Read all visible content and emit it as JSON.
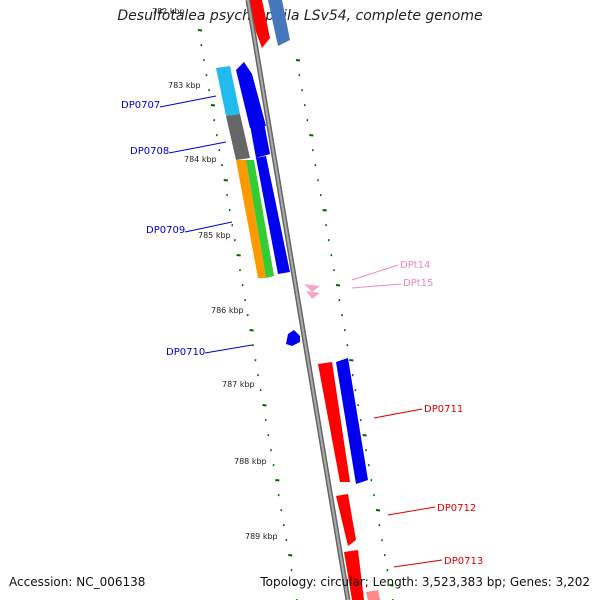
{
  "title": "Desulfotalea psychrophila LSv54, complete genome",
  "footer": {
    "accession": "Accession: NC_006138",
    "summary": "Topology: circular; Length: 3,523,383 bp; Genes: 3,202"
  },
  "ruler": {
    "top_faded_label": "782 kbp",
    "labels": [
      "783 kbp",
      "784 kbp",
      "785 kbp",
      "786 kbp",
      "787 kbp",
      "788 kbp",
      "789 kbp"
    ]
  },
  "genes": [
    {
      "name": "DP0707",
      "color": "#0000cc"
    },
    {
      "name": "DP0708",
      "color": "#0000cc"
    },
    {
      "name": "DP0709",
      "color": "#0000cc"
    },
    {
      "name": "DP0710",
      "color": "#0000cc"
    },
    {
      "name": "DPt14",
      "color": "#ee88bb"
    },
    {
      "name": "DPt15",
      "color": "#ee88bb"
    },
    {
      "name": "DP0711",
      "color": "#dd0000"
    },
    {
      "name": "DP0712",
      "color": "#dd0000"
    },
    {
      "name": "DP0713",
      "color": "#dd0000"
    }
  ],
  "colors": {
    "backbone": "#888888",
    "forward_gene": "#0000ee",
    "reverse_gene": "#ff0000",
    "trna": "#f4a6c8",
    "cds_cyan": "#22bbee",
    "cds_gray": "#666666",
    "cds_orange": "#ff9900",
    "cds_green": "#33cc33",
    "tick": "#006600"
  }
}
